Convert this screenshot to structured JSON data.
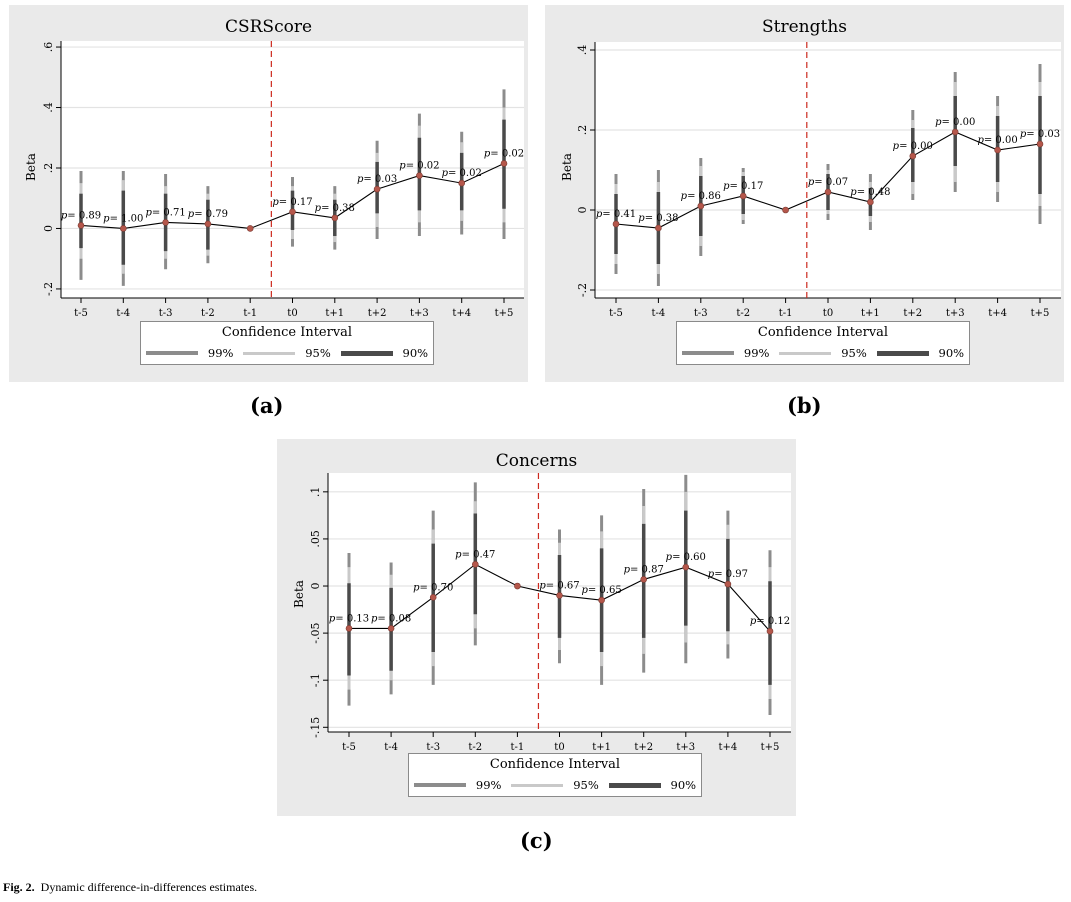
{
  "chart_data": [
    {
      "type": "line",
      "title": "CSRScore",
      "ylabel": "Beta",
      "xlabel": "",
      "categories": [
        "t-5",
        "t-4",
        "t-3",
        "t-2",
        "t-1",
        "t0",
        "t+1",
        "t+2",
        "t+3",
        "t+4",
        "t+5"
      ],
      "yticks": [
        {
          "value": -0.2,
          "label": "-.2"
        },
        {
          "value": 0,
          "label": "0"
        },
        {
          "value": 0.2,
          "label": ".2"
        },
        {
          "value": 0.4,
          "label": ".4"
        },
        {
          "value": 0.6,
          "label": ".6"
        }
      ],
      "ylim": [
        -0.23,
        0.62
      ],
      "event_line_after": "t-1",
      "estimates": [
        0.01,
        0.0,
        0.02,
        0.015,
        0.0,
        0.055,
        0.035,
        0.13,
        0.175,
        0.15,
        0.215
      ],
      "ci90": [
        [
          -0.065,
          0.115
        ],
        [
          -0.12,
          0.125
        ],
        [
          -0.075,
          0.115
        ],
        [
          -0.07,
          0.095
        ],
        null,
        [
          -0.005,
          0.125
        ],
        [
          -0.025,
          0.095
        ],
        [
          0.05,
          0.22
        ],
        [
          0.06,
          0.3
        ],
        [
          0.06,
          0.25
        ],
        [
          0.065,
          0.36
        ]
      ],
      "ci95": [
        [
          -0.1,
          0.15
        ],
        [
          -0.15,
          0.16
        ],
        [
          -0.1,
          0.14
        ],
        [
          -0.09,
          0.115
        ],
        null,
        [
          -0.035,
          0.14
        ],
        [
          -0.045,
          0.115
        ],
        [
          0.005,
          0.25
        ],
        [
          0.02,
          0.34
        ],
        [
          0.025,
          0.285
        ],
        [
          0.02,
          0.4
        ]
      ],
      "ci99": [
        [
          -0.17,
          0.19
        ],
        [
          -0.19,
          0.19
        ],
        [
          -0.135,
          0.18
        ],
        [
          -0.115,
          0.14
        ],
        null,
        [
          -0.06,
          0.17
        ],
        [
          -0.07,
          0.14
        ],
        [
          -0.035,
          0.29
        ],
        [
          -0.025,
          0.38
        ],
        [
          -0.02,
          0.32
        ],
        [
          -0.035,
          0.46
        ]
      ],
      "pvalue_labels": [
        "p= 0.89",
        "p= 1.00",
        "p= 0.71",
        "p= 0.79",
        "",
        "p= 0.17",
        "p= 0.38",
        "p= 0.03",
        "p= 0.02",
        "p= 0.02",
        "p= 0.02"
      ],
      "legend_title": "Confidence Interval",
      "legend": [
        "99%",
        "95%",
        "90%"
      ],
      "legend_placement": "bottom",
      "grid": true,
      "sublabel": "(a)"
    },
    {
      "type": "line",
      "title": "Strengths",
      "ylabel": "Beta",
      "xlabel": "",
      "categories": [
        "t-5",
        "t-4",
        "t-3",
        "t-2",
        "t-1",
        "t0",
        "t+1",
        "t+2",
        "t+3",
        "t+4",
        "t+5"
      ],
      "yticks": [
        {
          "value": -0.2,
          "label": "-.2"
        },
        {
          "value": 0,
          "label": "0"
        },
        {
          "value": 0.2,
          "label": ".2"
        },
        {
          "value": 0.4,
          "label": ".4"
        }
      ],
      "ylim": [
        -0.22,
        0.42
      ],
      "event_line_after": "t-1",
      "estimates": [
        -0.035,
        -0.045,
        0.01,
        0.035,
        0.0,
        0.045,
        0.02,
        0.135,
        0.195,
        0.15,
        0.165
      ],
      "ci90": [
        [
          -0.11,
          0.04
        ],
        [
          -0.135,
          0.045
        ],
        [
          -0.065,
          0.085
        ],
        [
          -0.01,
          0.085
        ],
        null,
        [
          0.0,
          0.09
        ],
        [
          -0.015,
          0.055
        ],
        [
          0.07,
          0.205
        ],
        [
          0.11,
          0.285
        ],
        [
          0.07,
          0.235
        ],
        [
          0.04,
          0.285
        ]
      ],
      "ci95": [
        [
          -0.135,
          0.065
        ],
        [
          -0.16,
          0.07
        ],
        [
          -0.09,
          0.11
        ],
        [
          -0.025,
          0.095
        ],
        null,
        [
          -0.01,
          0.1
        ],
        [
          -0.03,
          0.07
        ],
        [
          0.04,
          0.225
        ],
        [
          0.07,
          0.32
        ],
        [
          0.045,
          0.26
        ],
        [
          0.01,
          0.32
        ]
      ],
      "ci99": [
        [
          -0.16,
          0.09
        ],
        [
          -0.19,
          0.1
        ],
        [
          -0.115,
          0.13
        ],
        [
          -0.035,
          0.105
        ],
        null,
        [
          -0.025,
          0.115
        ],
        [
          -0.05,
          0.09
        ],
        [
          0.025,
          0.25
        ],
        [
          0.045,
          0.345
        ],
        [
          0.02,
          0.285
        ],
        [
          -0.035,
          0.365
        ]
      ],
      "pvalue_labels": [
        "p= 0.41",
        "p= 0.38",
        "p= 0.86",
        "p= 0.17",
        "",
        "p= 0.07",
        "p= 0.48",
        "p= 0.00",
        "p= 0.00",
        "p= 0.00",
        "p= 0.03"
      ],
      "legend_title": "Confidence Interval",
      "legend": [
        "99%",
        "95%",
        "90%"
      ],
      "legend_placement": "bottom",
      "grid": true,
      "sublabel": "(b)"
    },
    {
      "type": "line",
      "title": "Concerns",
      "ylabel": "Beta",
      "xlabel": "",
      "categories": [
        "t-5",
        "t-4",
        "t-3",
        "t-2",
        "t-1",
        "t0",
        "t+1",
        "t+2",
        "t+3",
        "t+4",
        "t+5"
      ],
      "yticks": [
        {
          "value": -0.15,
          "label": "-.15"
        },
        {
          "value": -0.1,
          "label": "-.1"
        },
        {
          "value": -0.05,
          "label": "-.05"
        },
        {
          "value": 0,
          "label": "0"
        },
        {
          "value": 0.05,
          "label": ".05"
        },
        {
          "value": 0.1,
          "label": ".1"
        }
      ],
      "ylim": [
        -0.155,
        0.12
      ],
      "event_line_after": "t-1",
      "estimates": [
        -0.045,
        -0.045,
        -0.012,
        0.023,
        0.0,
        -0.01,
        -0.015,
        0.007,
        0.02,
        0.002,
        -0.048
      ],
      "ci90": [
        [
          -0.095,
          0.003
        ],
        [
          -0.09,
          -0.002
        ],
        [
          -0.07,
          0.045
        ],
        [
          -0.03,
          0.077
        ],
        null,
        [
          -0.055,
          0.033
        ],
        [
          -0.07,
          0.04
        ],
        [
          -0.055,
          0.066
        ],
        [
          -0.042,
          0.08
        ],
        [
          -0.048,
          0.05
        ],
        [
          -0.105,
          0.005
        ]
      ],
      "ci95": [
        [
          -0.11,
          0.02
        ],
        [
          -0.1,
          0.012
        ],
        [
          -0.085,
          0.06
        ],
        [
          -0.045,
          0.09
        ],
        null,
        [
          -0.068,
          0.046
        ],
        [
          -0.085,
          0.058
        ],
        [
          -0.072,
          0.085
        ],
        [
          -0.06,
          0.1
        ],
        [
          -0.062,
          0.065
        ],
        [
          -0.12,
          0.02
        ]
      ],
      "ci99": [
        [
          -0.127,
          0.035
        ],
        [
          -0.115,
          0.025
        ],
        [
          -0.105,
          0.08
        ],
        [
          -0.063,
          0.11
        ],
        null,
        [
          -0.082,
          0.06
        ],
        [
          -0.105,
          0.075
        ],
        [
          -0.092,
          0.103
        ],
        [
          -0.082,
          0.118
        ],
        [
          -0.077,
          0.08
        ],
        [
          -0.137,
          0.038
        ]
      ],
      "pvalue_labels": [
        "p= 0.13",
        "p= 0.08",
        "p= 0.70",
        "p= 0.47",
        "",
        "p= 0.67",
        "p= 0.65",
        "p= 0.87",
        "p= 0.60",
        "p= 0.97",
        "p= 0.12"
      ],
      "legend_title": "Confidence Interval",
      "legend": [
        "99%",
        "95%",
        "90%"
      ],
      "legend_placement": "bottom",
      "grid": true,
      "sublabel": "(c)"
    }
  ],
  "colors": {
    "ci99": "#8c8c8c",
    "ci95": "#c9c9c9",
    "ci90": "#4a4a4a",
    "marker": "#b5574b",
    "event_line": "#cc2a1f",
    "panel_bg": "#eaeaea",
    "grid": "#e3e3e3"
  },
  "caption": {
    "label": "Fig. 2.",
    "text": "Dynamic difference-in-differences estimates."
  }
}
